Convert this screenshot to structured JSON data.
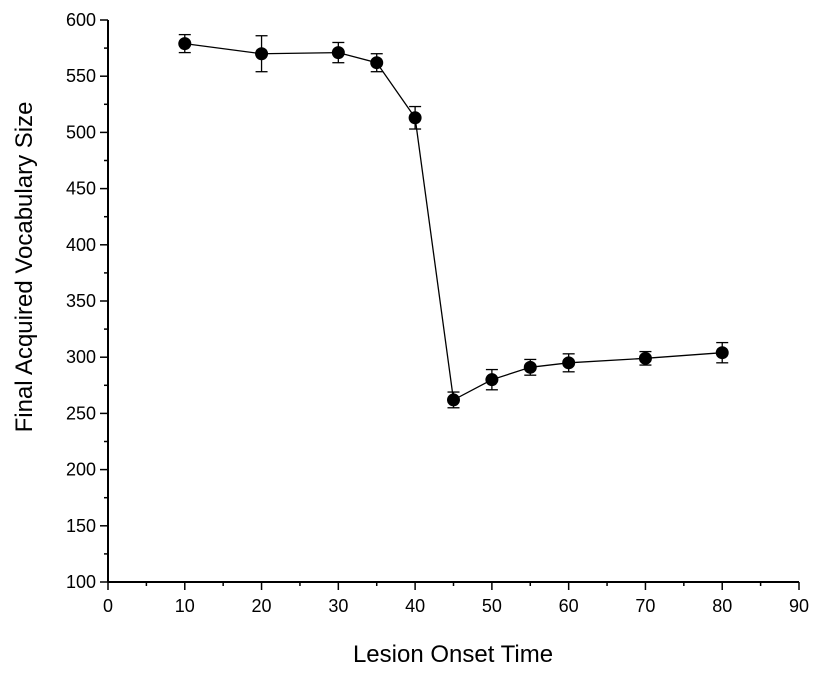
{
  "chart_data": {
    "type": "line",
    "title": "",
    "xlabel": "Lesion Onset Time",
    "ylabel": "Final Acquired Vocabulary Size",
    "xlim": [
      0,
      90
    ],
    "ylim": [
      100,
      600
    ],
    "xticks": [
      0,
      10,
      20,
      30,
      40,
      50,
      60,
      70,
      80,
      90
    ],
    "yticks": [
      100,
      150,
      200,
      250,
      300,
      350,
      400,
      450,
      500,
      550,
      600
    ],
    "grid": false,
    "legend": "none",
    "marker": "filled-circle",
    "colors": {
      "line": "#000000",
      "marker": "#000000",
      "axis": "#000000"
    },
    "series": [
      {
        "x": [
          10,
          20,
          30,
          35,
          40,
          45,
          50,
          55,
          60,
          70,
          80
        ],
        "y": [
          579,
          570,
          571,
          562,
          513,
          262,
          280,
          291,
          295,
          299,
          304
        ],
        "error": [
          8,
          16,
          9,
          8,
          10,
          7,
          9,
          7,
          8,
          6,
          9
        ]
      }
    ]
  }
}
